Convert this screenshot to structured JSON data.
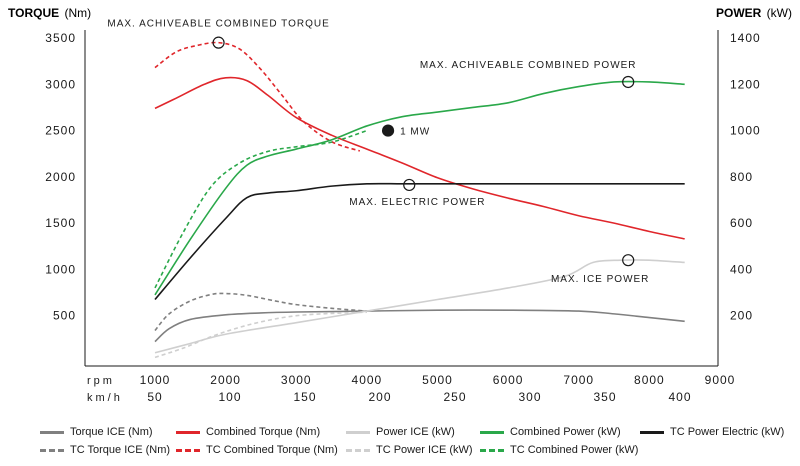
{
  "chart_data": {
    "type": "line",
    "left_axis": {
      "title": "TORQUE",
      "unit": "(Nm)",
      "ticks": [
        "500",
        "1000",
        "1500",
        "2000",
        "2500",
        "3000",
        "3500"
      ],
      "range": [
        0,
        3500
      ]
    },
    "right_axis": {
      "title": "POWER",
      "unit": "(kW)",
      "ticks": [
        "200",
        "400",
        "600",
        "800",
        "1000",
        "1200",
        "1400"
      ],
      "range": [
        0,
        1400
      ]
    },
    "x_axis": {
      "rpm_label": "rpm",
      "kmh_label": "km/h",
      "rpm_ticks": [
        "1000",
        "2000",
        "3000",
        "4000",
        "5000",
        "6000",
        "7000",
        "8000",
        "9000"
      ],
      "kmh_ticks": [
        "50",
        "100",
        "150",
        "200",
        "250",
        "300",
        "350",
        "400"
      ],
      "range": [
        1000,
        9000
      ]
    },
    "series": [
      {
        "name": "Torque ICE (Nm)",
        "axis": "left",
        "color": "#808080",
        "dashed": false,
        "x": [
          1000,
          1200,
          1500,
          2000,
          2500,
          3000,
          4000,
          5000,
          6000,
          7000,
          7500,
          8000,
          8500
        ],
        "y": [
          220,
          360,
          460,
          510,
          530,
          540,
          550,
          560,
          560,
          550,
          520,
          480,
          440
        ]
      },
      {
        "name": "TC Torque ICE (Nm)",
        "axis": "left",
        "color": "#808080",
        "dashed": true,
        "x": [
          1000,
          1200,
          1500,
          1800,
          2000,
          2300,
          2700,
          3000,
          3500,
          4000
        ],
        "y": [
          340,
          520,
          660,
          730,
          740,
          720,
          660,
          620,
          580,
          550
        ]
      },
      {
        "name": "Combined Torque (Nm)",
        "axis": "left",
        "color": "#e0262b",
        "dashed": false,
        "x": [
          1000,
          1300,
          1700,
          2000,
          2300,
          2600,
          3000,
          3500,
          4000,
          4500,
          5000,
          5500,
          6000,
          6500,
          7000,
          7500,
          8000,
          8500
        ],
        "y": [
          2740,
          2850,
          3000,
          3070,
          3040,
          2880,
          2640,
          2450,
          2300,
          2150,
          1990,
          1870,
          1770,
          1680,
          1580,
          1500,
          1410,
          1330
        ]
      },
      {
        "name": "TC Combined Torque (Nm)",
        "axis": "left",
        "color": "#e0262b",
        "dashed": true,
        "x": [
          1000,
          1300,
          1600,
          1900,
          2200,
          2500,
          2800,
          3100,
          3500,
          3900
        ],
        "y": [
          3180,
          3350,
          3420,
          3450,
          3380,
          3160,
          2880,
          2600,
          2380,
          2280
        ]
      },
      {
        "name": "Power ICE (kW)",
        "axis": "right",
        "color": "#cfcfcf",
        "dashed": false,
        "x": [
          1000,
          1500,
          2000,
          3000,
          4000,
          5000,
          6000,
          6800,
          7200,
          7600,
          8000,
          8500
        ],
        "y": [
          40,
          80,
          120,
          170,
          220,
          270,
          320,
          370,
          430,
          440,
          440,
          430
        ]
      },
      {
        "name": "TC Power ICE (kW)",
        "axis": "right",
        "color": "#cfcfcf",
        "dashed": true,
        "x": [
          1000,
          1400,
          1800,
          2200,
          2600,
          3000,
          3500,
          4000
        ],
        "y": [
          20,
          60,
          110,
          150,
          180,
          200,
          210,
          215
        ]
      },
      {
        "name": "Combined Power (kW)",
        "axis": "right",
        "color": "#2aa84a",
        "dashed": false,
        "x": [
          1000,
          1500,
          2000,
          2300,
          2600,
          3000,
          3500,
          4000,
          4500,
          5000,
          5500,
          6000,
          6500,
          7000,
          7500,
          8000,
          8500
        ],
        "y": [
          290,
          530,
          750,
          850,
          890,
          920,
          960,
          1020,
          1060,
          1080,
          1100,
          1120,
          1160,
          1190,
          1210,
          1210,
          1200
        ]
      },
      {
        "name": "TC Combined Power (kW)",
        "axis": "right",
        "color": "#2aa84a",
        "dashed": true,
        "x": [
          1000,
          1400,
          1800,
          2200,
          2600,
          3000,
          3500,
          4000
        ],
        "y": [
          320,
          560,
          760,
          860,
          910,
          930,
          950,
          1000
        ]
      },
      {
        "name": "TC Power Electric (kW)",
        "axis": "right",
        "color": "#1a1a1a",
        "dashed": false,
        "x": [
          1000,
          1500,
          2000,
          2300,
          2600,
          3000,
          3500,
          4000,
          4500,
          5000,
          6000,
          7000,
          8000,
          8500
        ],
        "y": [
          270,
          450,
          620,
          710,
          730,
          740,
          760,
          770,
          770,
          770,
          770,
          770,
          770,
          770
        ]
      }
    ],
    "annotations": [
      {
        "text": "MAX. ACHIVEABLE COMBINED TORQUE",
        "marker_x": 1900,
        "marker_y": 3450,
        "axis": "left",
        "filled": false
      },
      {
        "text": "MAX. ACHIVEABLE COMBINED POWER",
        "marker_x": 7700,
        "marker_y": 1210,
        "axis": "right",
        "filled": false
      },
      {
        "text": "1 MW",
        "marker_x": 4300,
        "marker_y": 1000,
        "axis": "right",
        "filled": true
      },
      {
        "text": "MAX. ELECTRIC POWER",
        "marker_x": 4600,
        "marker_y": 765,
        "axis": "right",
        "filled": false
      },
      {
        "text": "MAX. ICE POWER",
        "marker_x": 7700,
        "marker_y": 440,
        "axis": "right",
        "filled": false
      }
    ]
  }
}
